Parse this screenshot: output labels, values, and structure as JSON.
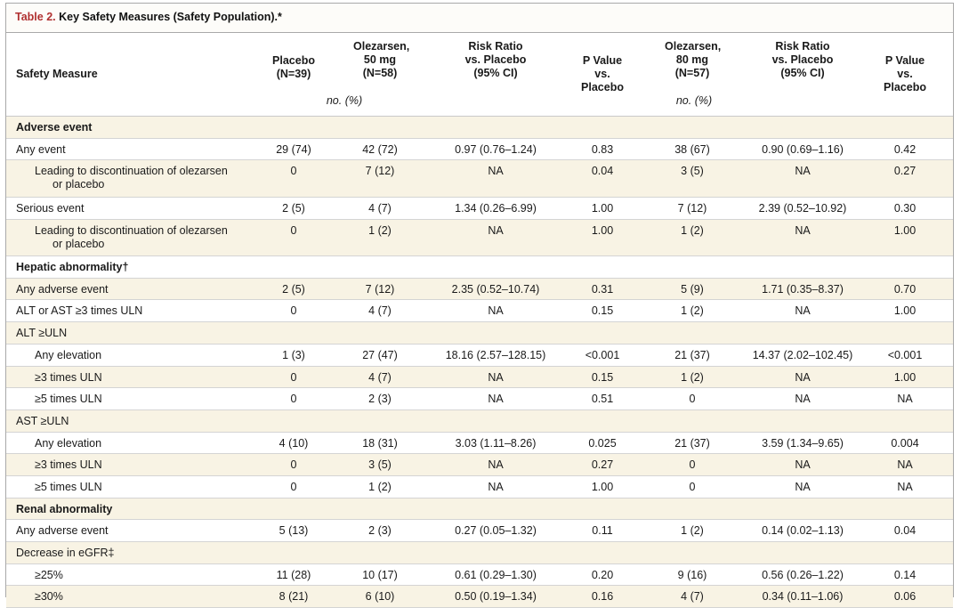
{
  "table": {
    "label": "Table 2.",
    "title": "Key Safety Measures (Safety Population).*",
    "columns": [
      [
        "Safety Measure"
      ],
      [
        "Placebo",
        "(N=39)"
      ],
      [
        "Olezarsen,",
        "50 mg",
        "(N=58)"
      ],
      [
        "Risk Ratio",
        "vs. Placebo",
        "(95% CI)"
      ],
      [
        "P Value",
        "vs. Placebo"
      ],
      [
        "Olezarsen,",
        "80 mg",
        "(N=57)"
      ],
      [
        "Risk Ratio",
        "vs. Placebo",
        "(95% CI)"
      ],
      [
        "P Value",
        "vs. Placebo"
      ]
    ],
    "unit_label_1": "no. (%)",
    "unit_label_2": "no. (%)",
    "rows": [
      {
        "label": "Adverse event",
        "type": "section",
        "cells": [
          "",
          "",
          "",
          "",
          "",
          "",
          ""
        ]
      },
      {
        "label": "Any event",
        "type": "normal",
        "cells": [
          "29 (74)",
          "42 (72)",
          "0.97 (0.76–1.24)",
          "0.83",
          "38 (67)",
          "0.90 (0.69–1.16)",
          "0.42"
        ]
      },
      {
        "label": "Leading to discontinuation of olezarsen",
        "label2": "or placebo",
        "type": "indent-wrap",
        "cells": [
          "0",
          "7 (12)",
          "NA",
          "0.04",
          "3 (5)",
          "NA",
          "0.27"
        ]
      },
      {
        "label": "Serious event",
        "type": "normal",
        "cells": [
          "2 (5)",
          "4 (7)",
          "1.34 (0.26–6.99)",
          "1.00",
          "7 (12)",
          "2.39 (0.52–10.92)",
          "0.30"
        ]
      },
      {
        "label": "Leading to discontinuation of olezarsen",
        "label2": "or placebo",
        "type": "indent-wrap",
        "cells": [
          "0",
          "1 (2)",
          "NA",
          "1.00",
          "1 (2)",
          "NA",
          "1.00"
        ]
      },
      {
        "label": "Hepatic abnormality†",
        "type": "section",
        "cells": [
          "",
          "",
          "",
          "",
          "",
          "",
          ""
        ]
      },
      {
        "label": "Any adverse event",
        "type": "normal",
        "cells": [
          "2 (5)",
          "7 (12)",
          "2.35 (0.52–10.74)",
          "0.31",
          "5 (9)",
          "1.71 (0.35–8.37)",
          "0.70"
        ]
      },
      {
        "label": "ALT or AST ≥3 times ULN",
        "type": "normal",
        "cells": [
          "0",
          "4 (7)",
          "NA",
          "0.15",
          "1 (2)",
          "NA",
          "1.00"
        ]
      },
      {
        "label": "ALT ≥ULN",
        "type": "normal",
        "cells": [
          "",
          "",
          "",
          "",
          "",
          "",
          ""
        ]
      },
      {
        "label": "Any elevation",
        "type": "indent",
        "cells": [
          "1 (3)",
          "27 (47)",
          "18.16 (2.57–128.15)",
          "<0.001",
          "21 (37)",
          "14.37 (2.02–102.45)",
          "<0.001"
        ]
      },
      {
        "label": "≥3 times ULN",
        "type": "indent",
        "cells": [
          "0",
          "4 (7)",
          "NA",
          "0.15",
          "1 (2)",
          "NA",
          "1.00"
        ]
      },
      {
        "label": "≥5 times ULN",
        "type": "indent",
        "cells": [
          "0",
          "2 (3)",
          "NA",
          "0.51",
          "0",
          "NA",
          "NA"
        ]
      },
      {
        "label": "AST ≥ULN",
        "type": "normal",
        "cells": [
          "",
          "",
          "",
          "",
          "",
          "",
          ""
        ]
      },
      {
        "label": "Any elevation",
        "type": "indent",
        "cells": [
          "4 (10)",
          "18 (31)",
          "3.03 (1.11–8.26)",
          "0.025",
          "21 (37)",
          "3.59 (1.34–9.65)",
          "0.004"
        ]
      },
      {
        "label": "≥3 times ULN",
        "type": "indent",
        "cells": [
          "0",
          "3 (5)",
          "NA",
          "0.27",
          "0",
          "NA",
          "NA"
        ]
      },
      {
        "label": "≥5 times ULN",
        "type": "indent",
        "cells": [
          "0",
          "1 (2)",
          "NA",
          "1.00",
          "0",
          "NA",
          "NA"
        ]
      },
      {
        "label": "Renal abnormality",
        "type": "section",
        "cells": [
          "",
          "",
          "",
          "",
          "",
          "",
          ""
        ]
      },
      {
        "label": "Any adverse event",
        "type": "normal",
        "cells": [
          "5 (13)",
          "2 (3)",
          "0.27 (0.05–1.32)",
          "0.11",
          "1 (2)",
          "0.14 (0.02–1.13)",
          "0.04"
        ]
      },
      {
        "label": "Decrease in eGFR‡",
        "type": "normal",
        "cells": [
          "",
          "",
          "",
          "",
          "",
          "",
          ""
        ]
      },
      {
        "label": "≥25%",
        "type": "indent",
        "cells": [
          "11 (28)",
          "10 (17)",
          "0.61 (0.29–1.30)",
          "0.20",
          "9 (16)",
          "0.56 (0.26–1.22)",
          "0.14"
        ]
      },
      {
        "label": "≥30%",
        "type": "indent",
        "cells": [
          "8 (21)",
          "6 (10)",
          "0.50 (0.19–1.34)",
          "0.16",
          "4 (7)",
          "0.34 (0.11–1.06)",
          "0.06"
        ]
      }
    ]
  }
}
